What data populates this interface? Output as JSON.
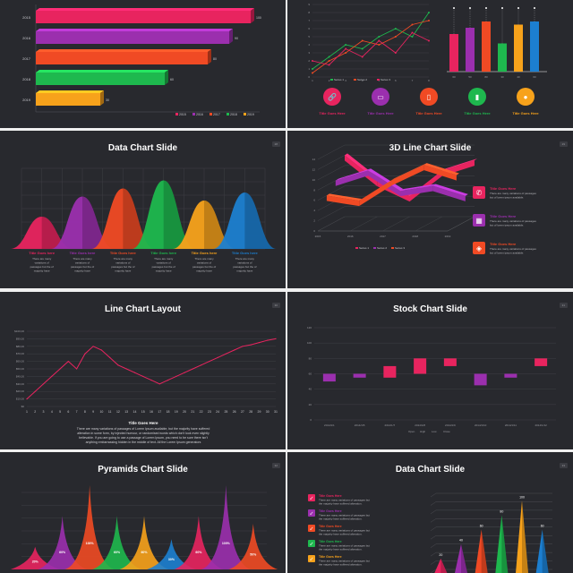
{
  "colors": {
    "background": "#28292e",
    "pink": "#e8245f",
    "purple": "#9b2fae",
    "red": "#f04a24",
    "green": "#1eb84e",
    "orange": "#f7a21b",
    "blue": "#1c7fd0"
  },
  "slides": {
    "s1": {
      "chart_data": {
        "type": "bar",
        "orientation": "horizontal",
        "categories": [
          "2015",
          "2016",
          "2017",
          "2018",
          "2019"
        ],
        "values": [
          100,
          90,
          80,
          60,
          30
        ],
        "legend": [
          "2015",
          "2016",
          "2017",
          "2018",
          "2019"
        ],
        "legend_position": "bottom-right"
      }
    },
    "s2": {
      "line_chart": {
        "type": "line",
        "x": [
          1,
          2,
          3,
          4,
          5,
          6,
          7,
          8
        ],
        "ylim": [
          0,
          9
        ],
        "yticks": [
          "0",
          "1",
          "2",
          "3",
          "4",
          "5",
          "6",
          "7",
          "8",
          "9"
        ],
        "series": [
          {
            "name": "Series 1",
            "values": [
              1,
              2.5,
              4,
              3.5,
              5,
              6,
              5,
              8
            ]
          },
          {
            "name": "Series 2",
            "values": [
              0.5,
              2,
              3,
              4.5,
              4,
              5,
              6.5,
              7
            ]
          },
          {
            "name": "Series 3",
            "values": [
              2,
              1.5,
              3.5,
              2.5,
              4.5,
              3,
              5.5,
              4.5
            ]
          }
        ]
      },
      "bar_chart": {
        "type": "bar",
        "categories": [
          "60",
          "50",
          "80",
          "30",
          "40",
          "60"
        ],
        "values": [
          60,
          70,
          80,
          45,
          75,
          80
        ]
      },
      "icons": [
        {
          "name": "link-icon",
          "label": "Title Goes Here",
          "color": "#e8245f"
        },
        {
          "name": "monitor-icon",
          "label": "Title Goes Here",
          "color": "#9b2fae"
        },
        {
          "name": "mobile-icon",
          "label": "Title Goes Here",
          "color": "#f04a24"
        },
        {
          "name": "chart-icon",
          "label": "Title Goes Here",
          "color": "#1eb84e"
        },
        {
          "name": "chat-icon",
          "label": "Title Goes Here",
          "color": "#f7a21b"
        }
      ]
    },
    "s3": {
      "title": "Data Chart Slide",
      "badge": "28",
      "chart_data": {
        "type": "area",
        "categories": [
          "Title Goes here",
          "Title Goes here",
          "Title Goes here",
          "Title Goes here",
          "Title Goes here",
          "Title Goes here"
        ],
        "values": [
          40,
          65,
          75,
          85,
          60,
          70
        ],
        "ylim": [
          0,
          100
        ]
      },
      "captions": [
        {
          "title": "Title Goes here",
          "body": "There are many variations of passages but the of majority have",
          "color": "#e8245f"
        },
        {
          "title": "Title Goes here",
          "body": "There are many variations of passages but the of majority have",
          "color": "#9b2fae"
        },
        {
          "title": "Title Goes here",
          "body": "There are many variations of passages but the of majority have",
          "color": "#f04a24"
        },
        {
          "title": "Title Goes here",
          "body": "There are many variations of passages but the of majority have",
          "color": "#1eb84e"
        },
        {
          "title": "Title Goes here",
          "body": "There are many variations of passages but the of majority have",
          "color": "#f7a21b"
        },
        {
          "title": "Title Goes here",
          "body": "There are many variations of passages but the of majority have",
          "color": "#1c7fd0"
        }
      ]
    },
    "s4": {
      "title": "3D Line Chart Slide",
      "badge": "29",
      "chart_data": {
        "type": "line",
        "categories": [
          "2015",
          "2016",
          "2017",
          "2018",
          "2019"
        ],
        "yticks": [
          "0",
          "2",
          "4",
          "6",
          "8",
          "10",
          "12",
          "14"
        ],
        "legend": [
          "Series 1",
          "Series 2",
          "Series 3"
        ],
        "series": [
          {
            "name": "Series 1",
            "values": [
              12,
              7,
              4,
              9,
              11
            ]
          },
          {
            "name": "Series 2",
            "values": [
              8,
              10,
              6,
              7,
              5
            ]
          },
          {
            "name": "Series 3",
            "values": [
              6,
              5,
              9,
              12,
              10
            ]
          }
        ]
      },
      "items": [
        {
          "name": "phone-icon",
          "title": "Title Goes Here",
          "body": "There are many variations of passages but of lorem ipsum available.",
          "color": "#e8245f"
        },
        {
          "name": "calendar-icon",
          "title": "Title Goes Here",
          "body": "There are many variations of passages but of lorem ipsum available.",
          "color": "#9b2fae"
        },
        {
          "name": "tag-icon",
          "title": "Title Goes Here",
          "body": "There are many variations of passages but of lorem ipsum available.",
          "color": "#f04a24"
        }
      ]
    },
    "s5": {
      "title": "Line Chart Layout",
      "badge": "30",
      "chart_data": {
        "type": "line",
        "x": [
          1,
          2,
          3,
          4,
          5,
          6,
          7,
          8,
          9,
          10,
          11,
          12,
          13,
          14,
          15,
          16,
          17,
          18,
          19,
          20,
          21,
          22,
          23,
          24,
          25,
          26,
          27,
          28,
          29,
          30,
          31
        ],
        "yticks": [
          "$0",
          "$10,00",
          "$20,00",
          "$30,00",
          "$40,00",
          "$50,00",
          "$60,00",
          "$70,00",
          "$80,00",
          "$90,00",
          "$100,00"
        ],
        "ylim": [
          0,
          100
        ],
        "series": [
          {
            "name": "Series 1",
            "values": [
              10,
              20,
              30,
              40,
              50,
              60,
              50,
              70,
              80,
              75,
              65,
              55,
              50,
              45,
              40,
              35,
              30,
              35,
              40,
              45,
              50,
              55,
              60,
              65,
              70,
              75,
              80,
              82,
              85,
              88,
              90
            ]
          }
        ]
      },
      "caption_title": "Title Goes Here",
      "caption_body": "There are many variations of passages of Lorem Ipsum available, but the majority have suffered alteration in some form, by injected humour, or randomised words which don't look even slightly believable. If you are going to use a passage of Lorem Ipsum, you need to be sure there isn't anything embarrassing hidden in the middle of text. All the Lorem Ipsum generators"
    },
    "s6": {
      "title": "Stock Chart Slide",
      "badge": "31",
      "chart_data": {
        "type": "bar",
        "categories": [
          "2014/1/1",
          "2014/1/5",
          "2014/1/7",
          "2014/1/8",
          "2014/1/9",
          "2014/1/10",
          "2014/1/11",
          "2014/1/12"
        ],
        "yticks": [
          "0",
          "20",
          "40",
          "60",
          "80",
          "100",
          "120"
        ],
        "ylim": [
          0,
          120
        ],
        "candles": [
          {
            "open": 60,
            "close": 50,
            "color": "#9b2fae"
          },
          {
            "open": 60,
            "close": 55,
            "color": "#9b2fae"
          },
          {
            "open": 70,
            "close": 55,
            "color": "#e8245f"
          },
          {
            "open": 60,
            "close": 80,
            "color": "#e8245f"
          },
          {
            "open": 70,
            "close": 80,
            "color": "#e8245f"
          },
          {
            "open": 60,
            "close": 45,
            "color": "#9b2fae"
          },
          {
            "open": 60,
            "close": 55,
            "color": "#9b2fae"
          },
          {
            "open": 70,
            "close": 80,
            "color": "#e8245f"
          }
        ],
        "legend": [
          "Open",
          "High",
          "Low",
          "Close"
        ]
      }
    },
    "s7": {
      "title": "Pyramids Chart Slide",
      "badge": "32",
      "chart_data": {
        "type": "area",
        "labels": [
          "20%",
          "60%",
          "100%",
          "60%",
          "60%",
          "30%",
          "60%",
          "100%",
          "50%"
        ],
        "values": [
          20,
          60,
          100,
          60,
          60,
          30,
          60,
          100,
          50
        ],
        "ylim": [
          0,
          100
        ]
      }
    },
    "s8": {
      "title": "Data Chart Slide",
      "badge": "33",
      "items": [
        {
          "title": "Title Goes Here",
          "body": "There are many variations of passages but the majority have suffered alteration.",
          "color": "#e8245f"
        },
        {
          "title": "Title Goes Here",
          "body": "There are many variations of passages but the majority have suffered alteration.",
          "color": "#9b2fae"
        },
        {
          "title": "Title Goes Here",
          "body": "There are many variations of passages but the majority have suffered alteration.",
          "color": "#f04a24"
        },
        {
          "title": "Title Goes Here",
          "body": "There are many variations of passages but the majority have suffered alteration.",
          "color": "#1eb84e"
        },
        {
          "title": "Title Goes Here",
          "body": "There are many variations of passages but the majority have suffered alteration.",
          "color": "#f7a21b"
        }
      ],
      "chart_data": {
        "type": "bar",
        "labels": [
          "20",
          "40",
          "60",
          "80",
          "100",
          "60"
        ],
        "values": [
          20,
          40,
          60,
          80,
          100,
          60
        ]
      }
    }
  }
}
